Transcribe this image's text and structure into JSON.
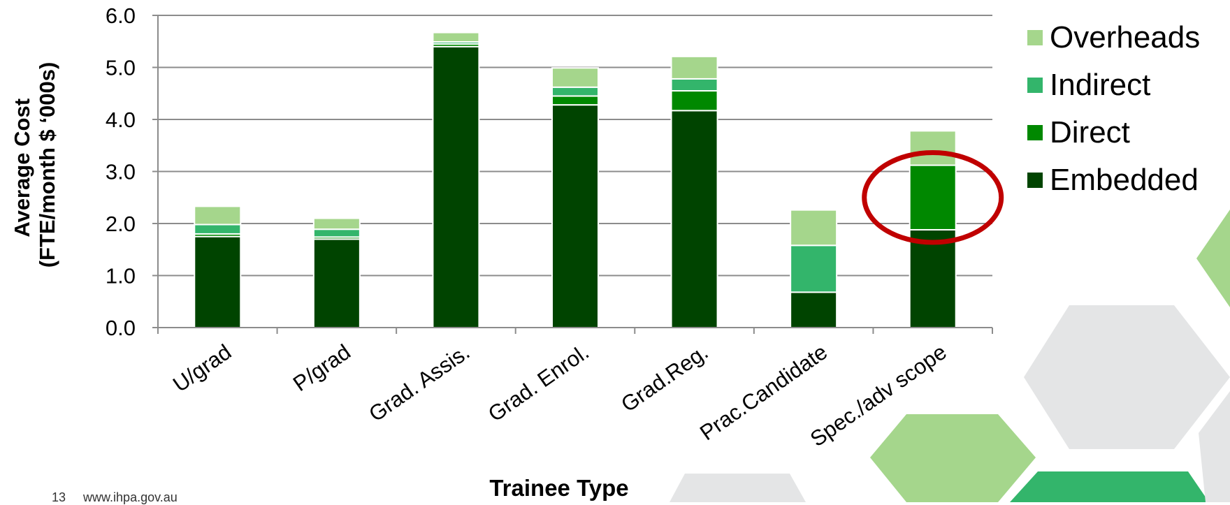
{
  "chart_data": {
    "type": "bar",
    "stacked": true,
    "categories": [
      "U/grad",
      "P/grad",
      "Grad. Assis.",
      "Grad. Enrol.",
      "Grad.Reg.",
      "Prac.Candidate",
      "Spec./adv scope"
    ],
    "series": [
      {
        "name": "Embedded",
        "color": "#004400",
        "values": [
          1.75,
          1.7,
          5.4,
          4.28,
          4.17,
          0.68,
          1.88
        ]
      },
      {
        "name": "Direct",
        "color": "#008800",
        "values": [
          0.05,
          0.04,
          0.05,
          0.17,
          0.38,
          0.0,
          1.24
        ]
      },
      {
        "name": "Indirect",
        "color": "#33b56b",
        "values": [
          0.18,
          0.15,
          0.04,
          0.17,
          0.23,
          0.9,
          0.0
        ]
      },
      {
        "name": "Overheads",
        "color": "#a5d68c",
        "values": [
          0.35,
          0.21,
          0.18,
          0.37,
          0.43,
          0.68,
          0.66
        ]
      }
    ],
    "xlabel": "Trainee Type",
    "ylabel": "Average Cost (FTE/month $ ‘000s)",
    "ylabel_lines": [
      "Average Cost",
      "(FTE/month $ ‘000s)"
    ],
    "yticks": [
      "0.0",
      "1.0",
      "2.0",
      "3.0",
      "4.0",
      "5.0",
      "6.0"
    ],
    "ylim": [
      0,
      6
    ],
    "grid": true,
    "legend": "right",
    "legend_order": [
      "Overheads",
      "Indirect",
      "Direct",
      "Embedded"
    ],
    "highlight": {
      "category": "Spec./adv scope",
      "shape": "ellipse",
      "color": "#c00000"
    }
  },
  "footer": {
    "page_number": "13",
    "url": "www.ihpa.gov.au"
  }
}
